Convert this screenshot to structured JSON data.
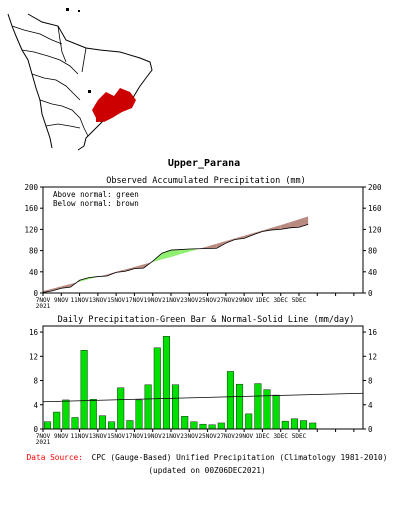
{
  "region_name": "Upper_Parana",
  "map": {
    "highlight_color": "#cc0000",
    "outline_color": "#000000"
  },
  "colors": {
    "above_normal": "#90ee70",
    "below_normal": "#b98a80",
    "observed_line": "#000000",
    "daily_bar": "#00e000",
    "normal_line": "#000000",
    "source_label": "#ff0000"
  },
  "legend": {
    "above": "Above normal: green",
    "below": "Below normal: brown"
  },
  "source": {
    "label": "Data Source:",
    "text": "CPC (Gauge-Based) Unified Precipitation (Climatology 1981-2010)",
    "updated": "(updated on 00Z06DEC2021)"
  },
  "chart_data": [
    {
      "type": "area",
      "title": "Observed Accumulated Precipitation (mm)",
      "ylim": [
        0,
        200
      ],
      "yticks": [
        0,
        40,
        80,
        120,
        160,
        200
      ],
      "xlim": [
        0,
        35
      ],
      "xtick_positions": [
        0,
        2,
        4,
        6,
        8,
        10,
        12,
        14,
        16,
        18,
        20,
        22,
        24,
        26,
        28,
        30,
        32,
        34
      ],
      "xtick_labels": [
        "7NOV\n2021",
        "9NOV",
        "11NOV",
        "13NOV",
        "15NOV",
        "17NOV",
        "19NOV",
        "21NOV",
        "23NOV",
        "25NOV",
        "27NOV",
        "29NOV",
        "1DEC",
        "3DEC",
        "5DEC",
        "",
        "",
        ""
      ],
      "series": [
        {
          "name": "Observed",
          "x": [
            0,
            1,
            2,
            3,
            4,
            5,
            6,
            7,
            8,
            9,
            10,
            11,
            12,
            13,
            14,
            15,
            16,
            17,
            18,
            19,
            20,
            21,
            22,
            23,
            24,
            25,
            26,
            27,
            28,
            29
          ],
          "values": [
            1,
            4,
            9,
            11,
            24,
            29,
            31,
            32,
            39,
            41,
            46,
            47,
            60,
            75,
            81,
            82,
            83,
            83.5,
            84,
            84.5,
            94,
            101,
            103,
            110,
            116,
            119,
            120,
            123,
            124,
            129.5
          ]
        },
        {
          "name": "Normal",
          "x": [
            0,
            1,
            2,
            3,
            4,
            5,
            6,
            7,
            8,
            9,
            10,
            11,
            12,
            13,
            14,
            15,
            16,
            17,
            18,
            19,
            20,
            21,
            22,
            23,
            24,
            25,
            26,
            27,
            28,
            29
          ],
          "values": [
            3.5,
            8,
            12.5,
            17,
            21.5,
            26,
            30.5,
            35,
            40,
            44.5,
            49,
            54,
            58.5,
            63.5,
            68,
            73,
            78,
            83,
            88,
            93,
            98,
            103,
            108,
            113,
            118,
            123,
            128,
            133.5,
            139,
            144.5
          ]
        }
      ]
    },
    {
      "type": "bar",
      "title": "Daily Precipitation-Green Bar & Normal-Solid Line (mm/day)",
      "ylim": [
        0,
        17
      ],
      "yticks": [
        0,
        4,
        8,
        12,
        16
      ],
      "xlim": [
        0,
        35
      ],
      "xtick_positions": [
        0,
        2,
        4,
        6,
        8,
        10,
        12,
        14,
        16,
        18,
        20,
        22,
        24,
        26,
        28,
        30,
        32,
        34
      ],
      "xtick_labels": [
        "7NOV\n2021",
        "9NOV",
        "11NOV",
        "13NOV",
        "15NOV",
        "17NOV",
        "19NOV",
        "21NOV",
        "23NOV",
        "25NOV",
        "27NOV",
        "29NOV",
        "1DEC",
        "3DEC",
        "5DEC",
        "",
        "",
        ""
      ],
      "x": [
        0,
        1,
        2,
        3,
        4,
        5,
        6,
        7,
        8,
        9,
        10,
        11,
        12,
        13,
        14,
        15,
        16,
        17,
        18,
        19,
        20,
        21,
        22,
        23,
        24,
        25,
        26,
        27,
        28,
        29
      ],
      "values": [
        1.2,
        2.8,
        4.8,
        1.9,
        13.0,
        4.9,
        2.2,
        1.2,
        6.8,
        1.4,
        4.8,
        7.3,
        13.4,
        15.3,
        7.3,
        2.1,
        1.2,
        0.8,
        0.7,
        1.0,
        9.5,
        7.4,
        2.5,
        7.5,
        6.5,
        5.6,
        1.3,
        1.7,
        1.4,
        1.0
      ],
      "normal": {
        "x": [
          0,
          35
        ],
        "values": [
          4.5,
          5.9
        ]
      }
    }
  ]
}
